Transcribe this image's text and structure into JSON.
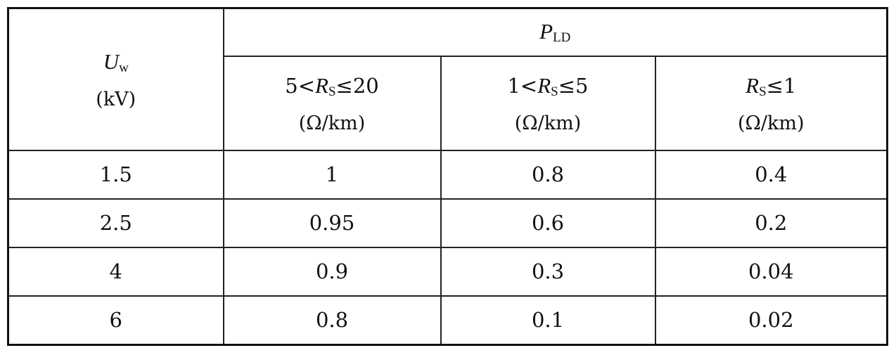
{
  "table": {
    "uw_header": {
      "symbol": "U",
      "subscript": "w",
      "unit": "(kV)"
    },
    "pld_header": {
      "symbol": "P",
      "subscript": "LD"
    },
    "sub_headers": [
      {
        "pre": "5<",
        "symbol": "R",
        "subscript": "S",
        "post": "≤20",
        "unit": "(Ω/km)"
      },
      {
        "pre": "1<",
        "symbol": "R",
        "subscript": "S",
        "post": "≤5",
        "unit": "(Ω/km)"
      },
      {
        "pre": "",
        "symbol": "R",
        "subscript": "S",
        "post": "≤1",
        "unit": "(Ω/km)"
      }
    ],
    "rows": [
      {
        "uw": "1.5",
        "c1": "1",
        "c2": "0.8",
        "c3": "0.4"
      },
      {
        "uw": "2.5",
        "c1": "0.95",
        "c2": "0.6",
        "c3": "0.2"
      },
      {
        "uw": "4",
        "c1": "0.9",
        "c2": "0.3",
        "c3": "0.04"
      },
      {
        "uw": "6",
        "c1": "0.8",
        "c2": "0.1",
        "c3": "0.02"
      }
    ]
  }
}
